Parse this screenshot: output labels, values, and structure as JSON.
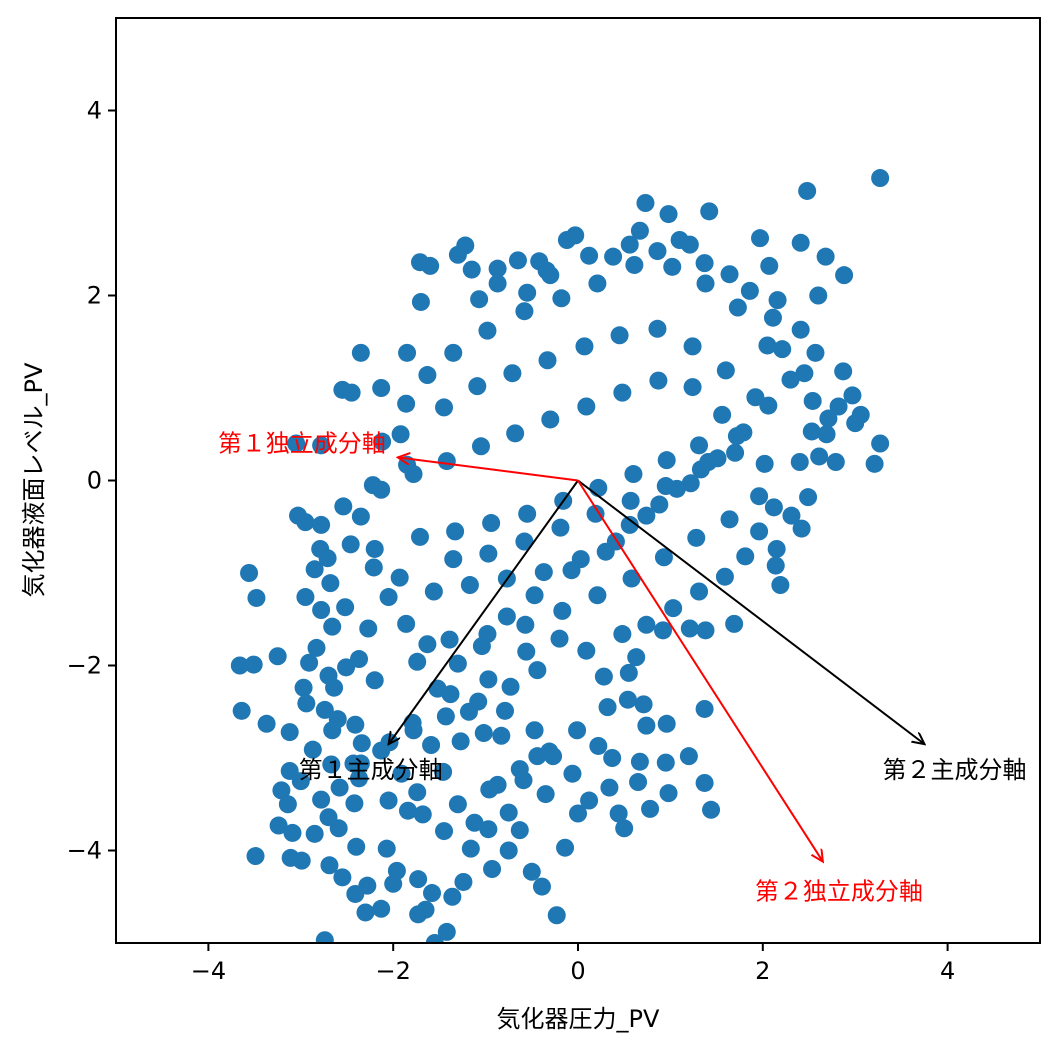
{
  "chart_data": {
    "type": "scatter",
    "xlabel": "気化器圧力_PV",
    "ylabel": "気化器液面レベル_PV",
    "xlim": [
      -5,
      5
    ],
    "ylim": [
      -5,
      5
    ],
    "xticks": [
      -4,
      -2,
      0,
      2,
      4
    ],
    "yticks": [
      -4,
      -2,
      0,
      2,
      4
    ],
    "xtick_labels": [
      "−4",
      "−2",
      "0",
      "2",
      "4"
    ],
    "ytick_labels": [
      "−4",
      "−2",
      "0",
      "2",
      "4"
    ],
    "grid": false,
    "colors": {
      "points": "#1f77b4",
      "pca": "#000000",
      "ica": "#ff0000"
    },
    "points": [
      [
        3.27,
        3.27
      ],
      [
        2.48,
        3.13
      ],
      [
        0.73,
        3.0
      ],
      [
        0.98,
        2.88
      ],
      [
        1.42,
        2.91
      ],
      [
        2.68,
        2.42
      ],
      [
        2.88,
        2.22
      ],
      [
        2.6,
        2.0
      ],
      [
        1.97,
        2.62
      ],
      [
        2.41,
        2.57
      ],
      [
        -1.22,
        2.54
      ],
      [
        -0.03,
        2.65
      ],
      [
        -0.12,
        2.6
      ],
      [
        -1.71,
        2.36
      ],
      [
        -1.6,
        2.32
      ],
      [
        -1.3,
        2.44
      ],
      [
        -1.15,
        2.28
      ],
      [
        -0.65,
        2.38
      ],
      [
        -0.42,
        2.37
      ],
      [
        -0.34,
        2.27
      ],
      [
        -1.7,
        1.93
      ],
      [
        -1.85,
        1.38
      ],
      [
        -2.35,
        1.38
      ],
      [
        -0.87,
        2.29
      ],
      [
        0.38,
        2.42
      ],
      [
        0.67,
        2.7
      ],
      [
        1.1,
        2.6
      ],
      [
        1.37,
        2.35
      ],
      [
        2.07,
        2.32
      ],
      [
        2.16,
        1.95
      ],
      [
        2.41,
        1.63
      ],
      [
        2.57,
        1.38
      ],
      [
        2.87,
        1.18
      ],
      [
        2.97,
        0.92
      ],
      [
        2.82,
        0.8
      ],
      [
        2.53,
        0.53
      ],
      [
        3.06,
        0.71
      ],
      [
        3.0,
        0.62
      ],
      [
        3.27,
        0.4
      ],
      [
        3.21,
        0.18
      ],
      [
        2.79,
        0.2
      ],
      [
        2.69,
        0.5
      ],
      [
        2.49,
        -0.18
      ],
      [
        2.31,
        -0.38
      ],
      [
        2.42,
        -0.52
      ],
      [
        2.15,
        -0.74
      ],
      [
        2.14,
        -0.92
      ],
      [
        2.19,
        -1.13
      ],
      [
        1.69,
        -1.55
      ],
      [
        1.38,
        -1.62
      ],
      [
        -2.13,
        1.0
      ],
      [
        -2.55,
        0.98
      ],
      [
        -2.45,
        0.95
      ],
      [
        -2.12,
        0.42
      ],
      [
        -2.78,
        0.38
      ],
      [
        -3.05,
        0.4
      ],
      [
        -3.03,
        -0.38
      ],
      [
        -2.95,
        -0.45
      ],
      [
        -2.78,
        -0.48
      ],
      [
        -2.79,
        -0.74
      ],
      [
        -2.71,
        -0.84
      ],
      [
        -3.56,
        -1.0
      ],
      [
        -3.48,
        -1.27
      ],
      [
        -2.95,
        -1.26
      ],
      [
        -2.78,
        -1.4
      ],
      [
        -2.66,
        -1.58
      ],
      [
        -2.83,
        -1.81
      ],
      [
        -3.25,
        -1.9
      ],
      [
        -3.51,
        -1.99
      ],
      [
        -3.66,
        -2.0
      ],
      [
        -2.91,
        -1.97
      ],
      [
        -2.97,
        -2.24
      ],
      [
        -2.64,
        -2.24
      ],
      [
        -2.74,
        -2.48
      ],
      [
        -3.64,
        -2.49
      ],
      [
        -3.37,
        -2.63
      ],
      [
        -2.6,
        -2.58
      ],
      [
        -2.66,
        -2.7
      ],
      [
        -2.41,
        -2.64
      ],
      [
        -2.34,
        -2.84
      ],
      [
        -2.04,
        -2.83
      ],
      [
        -3.12,
        -3.14
      ],
      [
        -3.21,
        -3.35
      ],
      [
        -3.0,
        -3.25
      ],
      [
        -3.14,
        -3.5
      ],
      [
        -2.78,
        -3.45
      ],
      [
        -2.58,
        -3.32
      ],
      [
        -2.43,
        -3.06
      ],
      [
        -2.42,
        -3.49
      ],
      [
        -3.09,
        -3.81
      ],
      [
        -3.24,
        -3.73
      ],
      [
        -2.85,
        -3.82
      ],
      [
        -2.59,
        -3.76
      ],
      [
        -3.11,
        -4.08
      ],
      [
        -2.99,
        -4.11
      ],
      [
        -3.49,
        -4.06
      ],
      [
        -2.55,
        -4.29
      ],
      [
        -2.41,
        -4.47
      ],
      [
        -2.28,
        -4.38
      ],
      [
        -2.3,
        -4.67
      ],
      [
        -2.0,
        -4.36
      ],
      [
        -2.13,
        -4.63
      ],
      [
        -1.73,
        -4.69
      ],
      [
        -1.58,
        -4.46
      ],
      [
        -1.65,
        -4.64
      ],
      [
        -1.36,
        -4.5
      ],
      [
        -1.42,
        -4.88
      ],
      [
        -1.55,
        -5.0
      ],
      [
        -2.74,
        -4.97
      ],
      [
        -0.5,
        -4.23
      ],
      [
        -0.39,
        -4.39
      ],
      [
        -0.23,
        -4.7
      ],
      [
        -0.75,
        -4.0
      ],
      [
        -0.97,
        -3.77
      ],
      [
        -0.75,
        -3.59
      ],
      [
        0.12,
        -3.46
      ],
      [
        0.44,
        -3.6
      ],
      [
        0.5,
        -3.76
      ],
      [
        0.0,
        -3.6
      ],
      [
        0.78,
        -3.55
      ],
      [
        0.98,
        -3.38
      ],
      [
        0.65,
        -3.26
      ],
      [
        0.67,
        -3.04
      ],
      [
        0.95,
        -3.05
      ],
      [
        1.2,
        -2.98
      ],
      [
        1.37,
        -3.27
      ],
      [
        1.44,
        -3.56
      ],
      [
        1.37,
        -2.47
      ],
      [
        0.96,
        -2.63
      ],
      [
        0.74,
        -2.65
      ],
      [
        0.71,
        -2.42
      ],
      [
        0.32,
        -2.45
      ],
      [
        0.22,
        -2.87
      ],
      [
        0.37,
        -3.0
      ],
      [
        0.54,
        -2.37
      ],
      [
        0.55,
        -2.08
      ],
      [
        0.63,
        -1.91
      ],
      [
        0.92,
        -1.62
      ],
      [
        1.21,
        -1.6
      ],
      [
        0.48,
        -1.66
      ],
      [
        -0.56,
        -1.85
      ],
      [
        -0.97,
        -2.15
      ],
      [
        -1.38,
        -2.31
      ],
      [
        -1.79,
        -2.62
      ],
      [
        -1.59,
        -2.86
      ],
      [
        -1.91,
        -3.17
      ],
      [
        -1.84,
        -3.57
      ],
      [
        -1.45,
        -3.79
      ],
      [
        -1.16,
        -3.98
      ],
      [
        -1.12,
        -3.7
      ],
      [
        -0.87,
        -3.29
      ],
      [
        -0.59,
        -3.24
      ],
      [
        -0.31,
        -2.93
      ],
      [
        -0.01,
        -2.7
      ],
      [
        -0.47,
        -2.7
      ],
      [
        -0.79,
        -2.49
      ],
      [
        -1.02,
        -2.73
      ],
      [
        -1.27,
        -2.82
      ],
      [
        -1.46,
        -3.15
      ],
      [
        -1.74,
        -3.37
      ],
      [
        -2.07,
        -3.98
      ],
      [
        -1.96,
        -4.22
      ],
      [
        -1.73,
        -4.31
      ],
      [
        -1.24,
        -4.34
      ],
      [
        -0.93,
        -4.2
      ],
      [
        -0.63,
        -3.78
      ],
      [
        -0.14,
        -3.97
      ],
      [
        -0.35,
        -3.39
      ],
      [
        -1.92,
        0.5
      ],
      [
        -1.85,
        0.17
      ],
      [
        -2.22,
        -0.05
      ],
      [
        -2.54,
        -0.28
      ],
      [
        -2.46,
        -0.69
      ],
      [
        -2.21,
        -0.94
      ],
      [
        -2.05,
        -1.26
      ],
      [
        -1.86,
        -1.55
      ],
      [
        -1.63,
        -1.77
      ],
      [
        -1.3,
        -1.98
      ],
      [
        -1.04,
        -1.79
      ],
      [
        -0.77,
        -1.47
      ],
      [
        -0.47,
        -1.24
      ],
      [
        -0.07,
        -0.97
      ],
      [
        0.3,
        -0.77
      ],
      [
        0.56,
        -0.48
      ],
      [
        0.88,
        -0.26
      ],
      [
        1.22,
        -0.03
      ],
      [
        1.51,
        0.24
      ],
      [
        1.79,
        0.52
      ],
      [
        2.06,
        0.81
      ],
      [
        2.3,
        1.09
      ],
      [
        2.05,
        1.46
      ],
      [
        1.73,
        1.87
      ],
      [
        1.38,
        2.13
      ],
      [
        1.02,
        2.31
      ],
      [
        0.61,
        2.33
      ],
      [
        0.21,
        2.13
      ],
      [
        -0.18,
        1.97
      ],
      [
        -0.58,
        1.83
      ],
      [
        -0.98,
        1.62
      ],
      [
        -1.35,
        1.38
      ],
      [
        -1.63,
        1.14
      ],
      [
        -1.86,
        0.83
      ],
      [
        -1.45,
        0.79
      ],
      [
        -1.09,
        1.02
      ],
      [
        -0.71,
        1.16
      ],
      [
        -0.33,
        1.3
      ],
      [
        0.07,
        1.45
      ],
      [
        0.45,
        1.57
      ],
      [
        0.86,
        1.64
      ],
      [
        1.24,
        1.45
      ],
      [
        1.6,
        1.19
      ],
      [
        1.92,
        0.9
      ],
      [
        1.72,
        0.48
      ],
      [
        1.41,
        0.2
      ],
      [
        1.07,
        -0.09
      ],
      [
        0.74,
        -0.38
      ],
      [
        0.41,
        -0.66
      ],
      [
        0.03,
        -0.85
      ],
      [
        -0.37,
        -0.99
      ],
      [
        -0.77,
        -1.06
      ],
      [
        -1.17,
        -1.13
      ],
      [
        -1.56,
        -1.2
      ],
      [
        -1.93,
        -1.05
      ],
      [
        -2.2,
        -0.74
      ],
      [
        -2.35,
        -0.39
      ],
      [
        -2.13,
        -0.1
      ],
      [
        -1.78,
        0.07
      ],
      [
        -1.42,
        0.21
      ],
      [
        -1.05,
        0.37
      ],
      [
        -0.68,
        0.51
      ],
      [
        -0.3,
        0.66
      ],
      [
        0.09,
        0.8
      ],
      [
        0.48,
        0.95
      ],
      [
        0.87,
        1.08
      ],
      [
        1.24,
        1.01
      ],
      [
        1.56,
        0.71
      ],
      [
        1.31,
        0.38
      ],
      [
        0.96,
        0.22
      ],
      [
        0.6,
        0.07
      ],
      [
        0.22,
        -0.08
      ],
      [
        -0.16,
        -0.22
      ],
      [
        -0.55,
        -0.36
      ],
      [
        -0.94,
        -0.46
      ],
      [
        -1.33,
        -0.55
      ],
      [
        -1.71,
        -0.61
      ],
      [
        -1.35,
        -0.85
      ],
      [
        -0.97,
        -0.79
      ],
      [
        -0.58,
        -0.66
      ],
      [
        -0.19,
        -0.51
      ],
      [
        0.19,
        -0.36
      ],
      [
        0.57,
        -0.22
      ],
      [
        0.95,
        -0.06
      ],
      [
        1.33,
        0.12
      ],
      [
        1.7,
        0.3
      ],
      [
        2.02,
        0.18
      ],
      [
        1.96,
        -0.17
      ],
      [
        1.64,
        -0.42
      ],
      [
        1.28,
        -0.62
      ],
      [
        0.93,
        -0.83
      ],
      [
        0.58,
        -1.06
      ],
      [
        0.21,
        -1.24
      ],
      [
        -0.17,
        -1.41
      ],
      [
        -0.57,
        -1.56
      ],
      [
        -0.98,
        -1.66
      ],
      [
        -1.39,
        -1.72
      ],
      [
        -1.74,
        -1.96
      ],
      [
        -1.52,
        -2.25
      ],
      [
        -1.18,
        -2.5
      ],
      [
        -0.83,
        -2.76
      ],
      [
        -0.44,
        -2.98
      ],
      [
        -0.06,
        -3.17
      ],
      [
        0.34,
        -3.32
      ],
      [
        0.28,
        -2.12
      ],
      [
        0.09,
        -1.84
      ],
      [
        -0.2,
        -1.71
      ],
      [
        -0.44,
        -2.05
      ],
      [
        -0.73,
        -2.23
      ],
      [
        -1.08,
        -2.39
      ],
      [
        -1.43,
        -2.55
      ],
      [
        -1.78,
        -2.7
      ],
      [
        -2.13,
        -2.92
      ],
      [
        -2.37,
        -3.22
      ],
      [
        -2.05,
        -3.46
      ],
      [
        -1.68,
        -3.61
      ],
      [
        -1.3,
        -3.5
      ],
      [
        -0.96,
        -3.34
      ],
      [
        -0.63,
        -3.12
      ],
      [
        -0.27,
        -2.98
      ],
      [
        -2.68,
        -1.11
      ],
      [
        -2.85,
        -0.96
      ],
      [
        -2.52,
        -1.37
      ],
      [
        -2.27,
        -1.6
      ],
      [
        -2.37,
        -1.93
      ],
      [
        -2.2,
        -2.16
      ],
      [
        -2.51,
        -2.02
      ],
      [
        -2.7,
        -2.11
      ],
      [
        -2.94,
        -2.41
      ],
      [
        -3.12,
        -2.72
      ],
      [
        -2.87,
        -2.91
      ],
      [
        -2.67,
        -3.07
      ],
      [
        -2.35,
        -3.06
      ],
      [
        -2.7,
        -3.64
      ],
      [
        -2.4,
        -3.96
      ],
      [
        -2.69,
        -4.16
      ],
      [
        -0.55,
        2.03
      ],
      [
        -0.87,
        2.13
      ],
      [
        -1.07,
        1.96
      ],
      [
        -0.3,
        2.22
      ],
      [
        0.12,
        2.43
      ],
      [
        0.56,
        2.55
      ],
      [
        0.86,
        2.48
      ],
      [
        1.21,
        2.55
      ],
      [
        1.64,
        2.23
      ],
      [
        1.86,
        2.05
      ],
      [
        2.11,
        1.76
      ],
      [
        2.21,
        1.42
      ],
      [
        2.45,
        1.16
      ],
      [
        2.54,
        0.86
      ],
      [
        2.71,
        0.67
      ],
      [
        2.61,
        0.26
      ],
      [
        2.4,
        0.2
      ],
      [
        2.12,
        -0.29
      ],
      [
        1.96,
        -0.55
      ],
      [
        1.81,
        -0.82
      ],
      [
        1.59,
        -1.04
      ],
      [
        1.31,
        -1.2
      ],
      [
        1.03,
        -1.38
      ],
      [
        0.74,
        -1.56
      ]
    ],
    "series": [
      {
        "name": "第１主成分軸",
        "x": -2.05,
        "y": -2.85
      },
      {
        "name": "第２主成分軸",
        "x": 3.75,
        "y": -2.85
      },
      {
        "name": "第１独立成分軸",
        "x": -1.95,
        "y": 0.25
      },
      {
        "name": "第２独立成分軸",
        "x": 2.65,
        "y": -4.12
      }
    ]
  }
}
